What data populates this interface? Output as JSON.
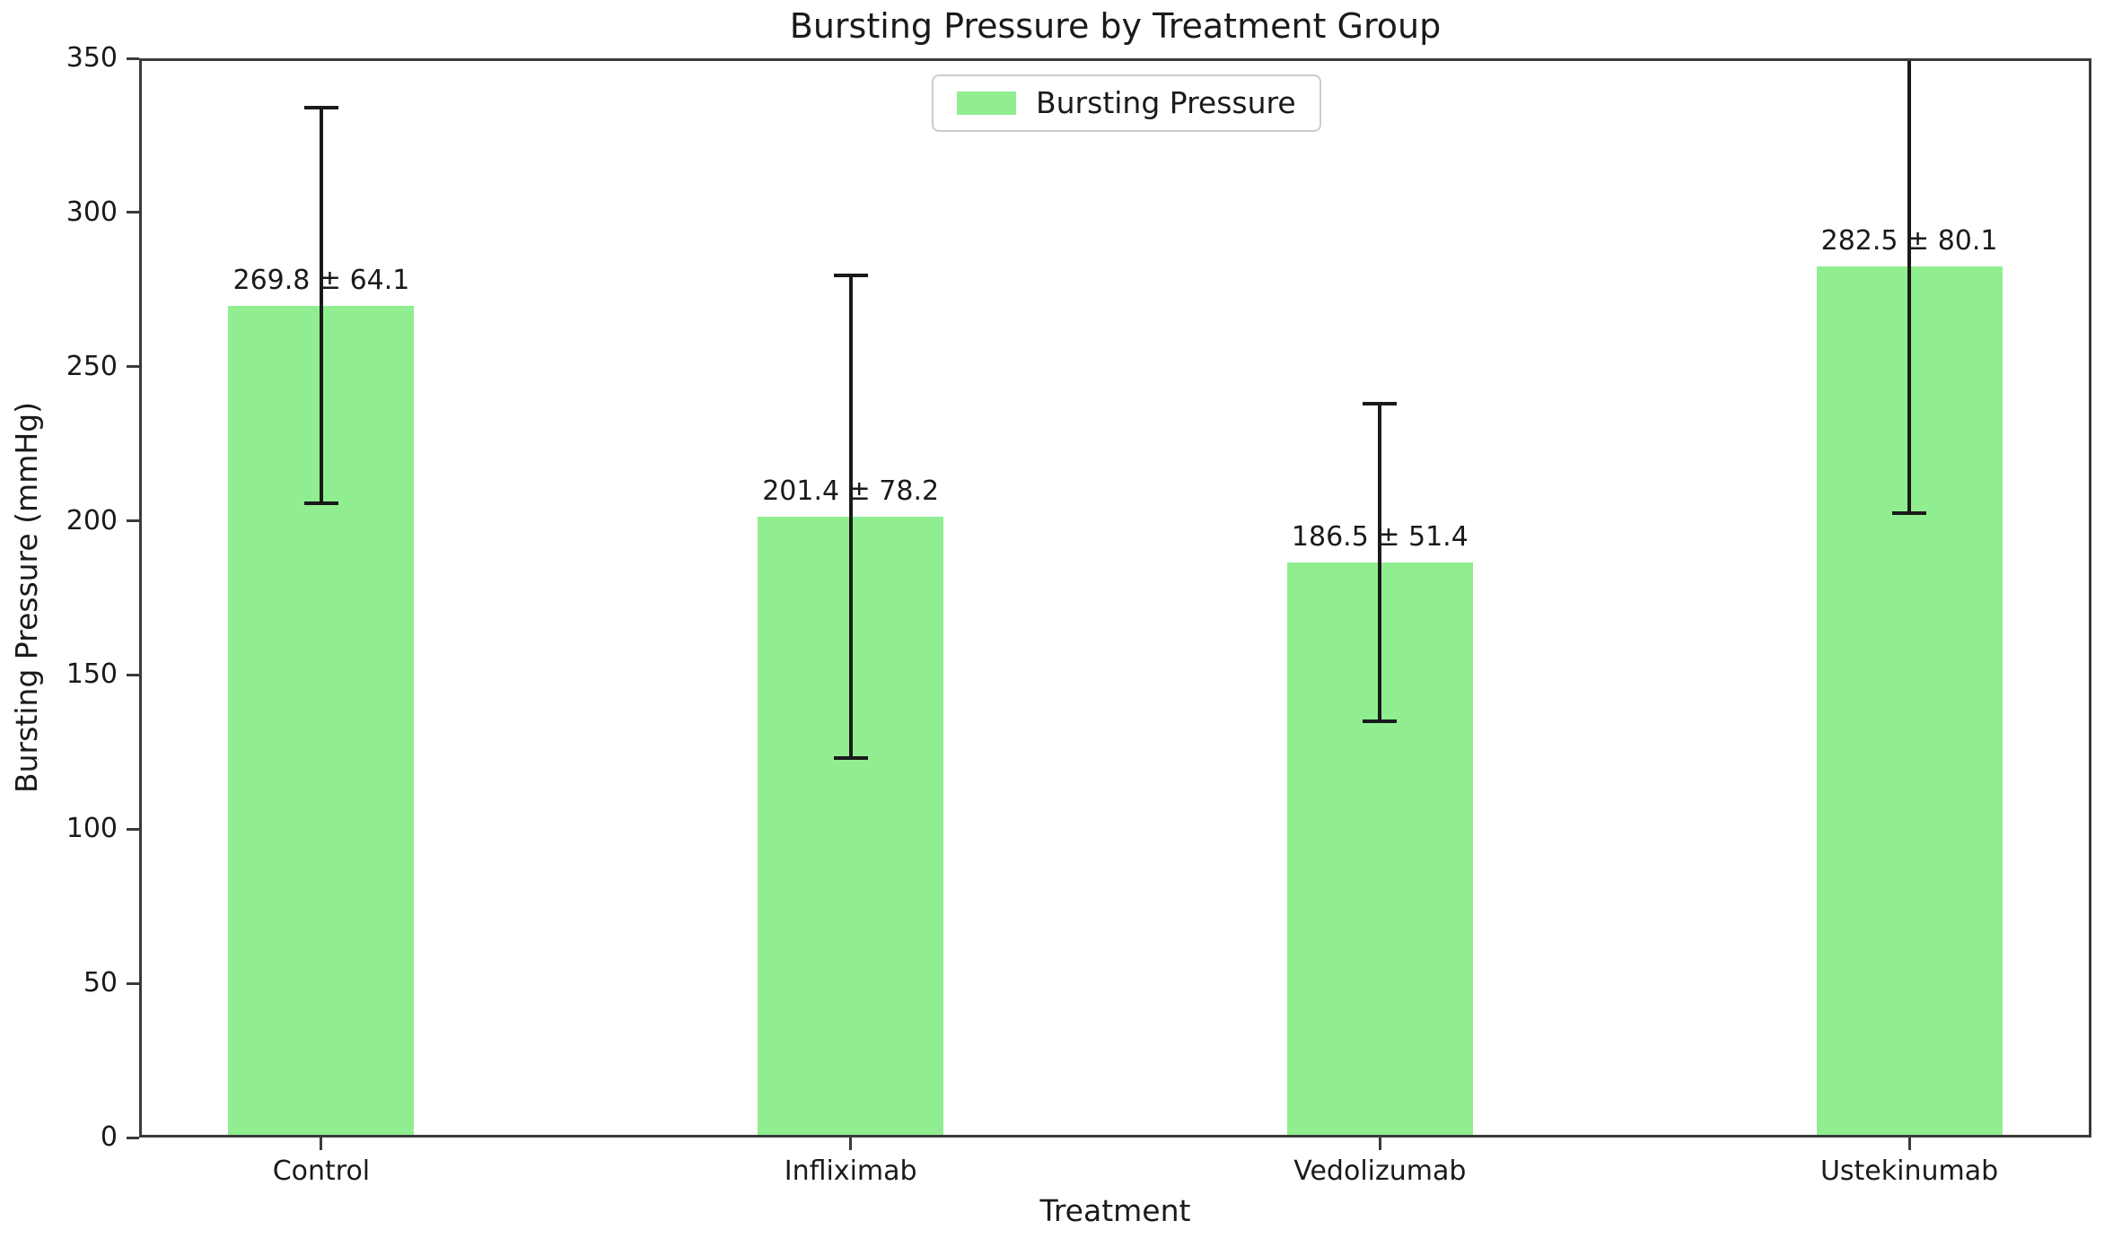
{
  "chart_data": {
    "type": "bar",
    "title": "Bursting Pressure by Treatment Group",
    "xlabel": "Treatment",
    "ylabel": "Bursting Pressure (mmHg)",
    "categories": [
      "Control",
      "Infliximab",
      "Vedolizumab",
      "Ustekinumab"
    ],
    "series": [
      {
        "name": "Bursting Pressure",
        "values": [
          269.8,
          201.4,
          186.5,
          282.5
        ],
        "errors": [
          64.1,
          78.2,
          51.4,
          80.1
        ]
      }
    ],
    "annotations": [
      "269.8 ± 64.1",
      "201.4 ± 78.2",
      "186.5 ± 51.4",
      "282.5 ± 80.1"
    ],
    "ylim": [
      0,
      350
    ],
    "yticks": [
      0,
      50,
      100,
      150,
      200,
      250,
      300,
      350
    ],
    "grid": false,
    "legend": {
      "label": "Bursting Pressure",
      "position": "upper center"
    },
    "colors": {
      "bar_fill": "#90EE90",
      "error_bar": "#1a1a1a",
      "spine": "#3a3a3a",
      "background": "#ffffff"
    }
  }
}
